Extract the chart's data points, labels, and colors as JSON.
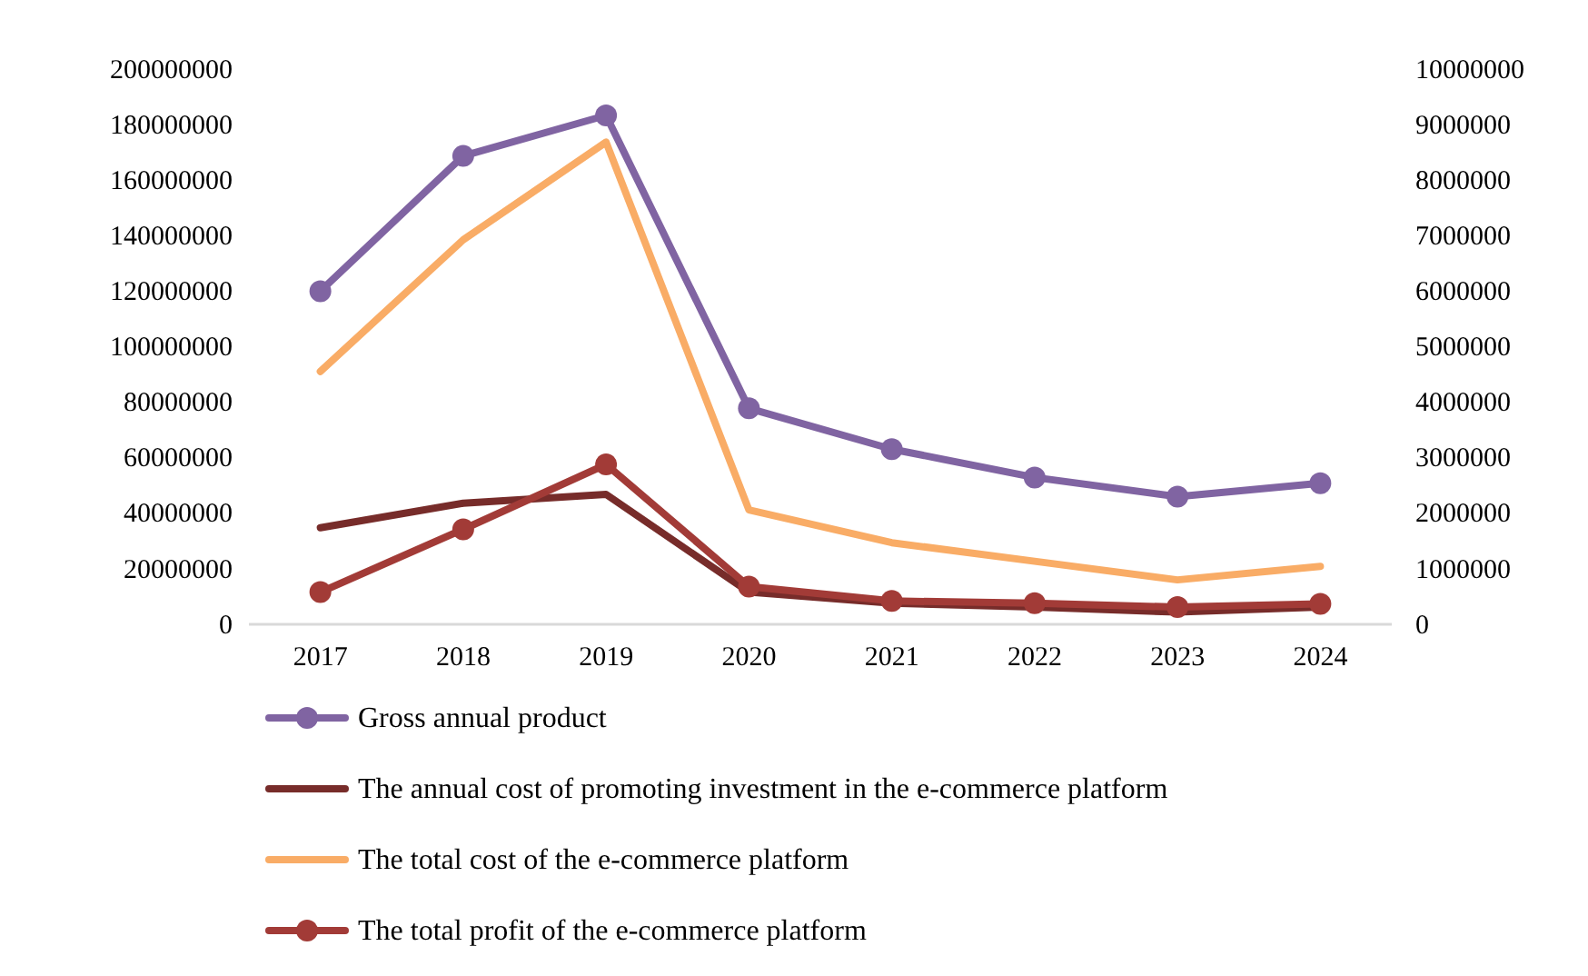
{
  "chart_data": {
    "type": "line",
    "categories": [
      "2017",
      "2018",
      "2019",
      "2020",
      "2021",
      "2022",
      "2023",
      "2024"
    ],
    "series": [
      {
        "name": "Gross annual product",
        "color": "#8064a2",
        "marker": "circle",
        "values": [
          120000000,
          168700000,
          183300000,
          77800000,
          63100000,
          52900000,
          46000000,
          50800000
        ]
      },
      {
        "name": "The annual cost of promoting investment in the e-commerce platform",
        "color": "#772c2a",
        "marker": "none",
        "axis": "y2",
        "values": [
          1740000,
          2180000,
          2340000,
          580000,
          380000,
          310000,
          220000,
          310000
        ]
      },
      {
        "name": "The total cost of the e-commerce platform",
        "color": "#f9ac66",
        "marker": "none",
        "values": [
          91100000,
          138500000,
          173700000,
          41200000,
          29400000,
          22700000,
          16000000,
          20900000
        ]
      },
      {
        "name": "The total profit of the e-commerce platform",
        "color": "#a23b37",
        "marker": "circle",
        "axis": "y2",
        "values": [
          580000,
          1710000,
          2880000,
          680000,
          420000,
          380000,
          310000,
          370000
        ]
      }
    ],
    "ylim": [
      0,
      200000000
    ],
    "yticks": [
      0,
      20000000,
      40000000,
      60000000,
      80000000,
      100000000,
      120000000,
      140000000,
      160000000,
      180000000,
      200000000
    ],
    "y2lim": [
      0,
      10000000
    ],
    "y2ticks": [
      0,
      1000000,
      2000000,
      3000000,
      4000000,
      5000000,
      6000000,
      7000000,
      8000000,
      9000000,
      10000000
    ],
    "grid": false,
    "legend": "bottom"
  }
}
